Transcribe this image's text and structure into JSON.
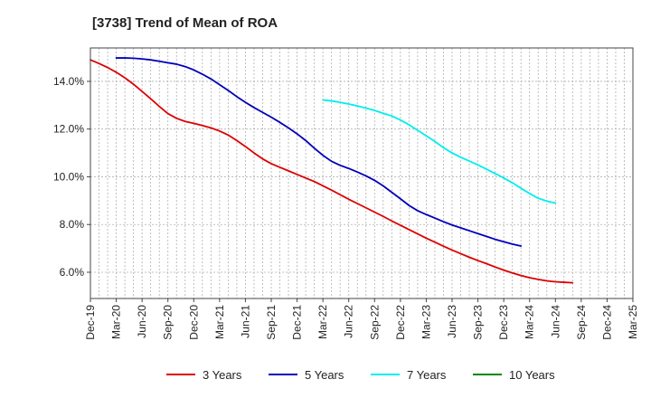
{
  "chart_data": {
    "type": "line",
    "title": "[3738]  Trend of Mean of ROA",
    "xlabel": "",
    "ylabel": "",
    "ylim": [
      4.9,
      15.4
    ],
    "y_ticks": [
      6.0,
      8.0,
      10.0,
      12.0,
      14.0
    ],
    "y_tick_labels": [
      "6.0%",
      "8.0%",
      "10.0%",
      "12.0%",
      "14.0%"
    ],
    "x_tick_labels": [
      "Dec-19",
      "Mar-20",
      "Jun-20",
      "Sep-20",
      "Dec-20",
      "Mar-21",
      "Jun-21",
      "Sep-21",
      "Dec-21",
      "Mar-22",
      "Jun-22",
      "Sep-22",
      "Dec-22",
      "Mar-23",
      "Jun-23",
      "Sep-23",
      "Dec-23",
      "Mar-24",
      "Jun-24",
      "Sep-24",
      "Dec-24",
      "Mar-25"
    ],
    "x_minor_per_major": 3,
    "grid": true,
    "legend_position": "bottom",
    "series": [
      {
        "name": "3 Years",
        "color": "#dd0000",
        "start_index": 0,
        "values": [
          14.9,
          14.75,
          14.58,
          14.38,
          14.15,
          13.88,
          13.58,
          13.27,
          12.95,
          12.65,
          12.45,
          12.32,
          12.24,
          12.15,
          12.05,
          11.92,
          11.75,
          11.52,
          11.27,
          11.0,
          10.75,
          10.55,
          10.4,
          10.25,
          10.1,
          9.95,
          9.8,
          9.62,
          9.44,
          9.25,
          9.06,
          8.88,
          8.7,
          8.52,
          8.34,
          8.15,
          7.97,
          7.79,
          7.61,
          7.43,
          7.26,
          7.09,
          6.93,
          6.78,
          6.63,
          6.49,
          6.36,
          6.22,
          6.09,
          5.97,
          5.86,
          5.77,
          5.7,
          5.64,
          5.6,
          5.58,
          5.56
        ]
      },
      {
        "name": "5 Years",
        "color": "#0000bb",
        "start_index": 3,
        "values": [
          14.98,
          14.98,
          14.97,
          14.94,
          14.9,
          14.84,
          14.78,
          14.72,
          14.62,
          14.48,
          14.3,
          14.1,
          13.86,
          13.62,
          13.36,
          13.12,
          12.9,
          12.7,
          12.5,
          12.28,
          12.05,
          11.8,
          11.52,
          11.2,
          10.9,
          10.65,
          10.48,
          10.35,
          10.2,
          10.04,
          9.85,
          9.62,
          9.35,
          9.08,
          8.8,
          8.58,
          8.42,
          8.27,
          8.12,
          7.98,
          7.86,
          7.74,
          7.62,
          7.5,
          7.38,
          7.28,
          7.18,
          7.1
        ]
      },
      {
        "name": "7 Years",
        "color": "#00eeee",
        "start_index": 27,
        "values": [
          13.22,
          13.18,
          13.12,
          13.05,
          12.97,
          12.88,
          12.78,
          12.66,
          12.55,
          12.38,
          12.18,
          11.95,
          11.72,
          11.48,
          11.22,
          11.0,
          10.82,
          10.66,
          10.5,
          10.32,
          10.14,
          9.95,
          9.75,
          9.52,
          9.3,
          9.1,
          8.98,
          8.9
        ]
      },
      {
        "name": "10 Years",
        "color": "#008800",
        "start_index": 0,
        "values": []
      }
    ]
  }
}
